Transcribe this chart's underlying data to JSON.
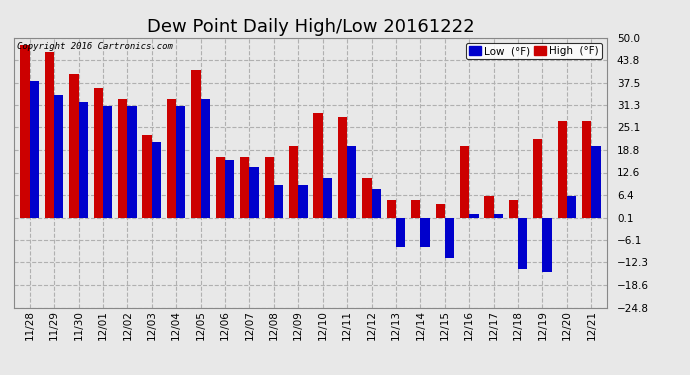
{
  "title": "Dew Point Daily High/Low 20161222",
  "copyright": "Copyright 2016 Cartronics.com",
  "dates": [
    "11/28",
    "11/29",
    "11/30",
    "12/01",
    "12/02",
    "12/03",
    "12/04",
    "12/05",
    "12/06",
    "12/07",
    "12/08",
    "12/09",
    "12/10",
    "12/11",
    "12/12",
    "12/13",
    "12/14",
    "12/15",
    "12/16",
    "12/17",
    "12/18",
    "12/19",
    "12/20",
    "12/21"
  ],
  "high": [
    48,
    46,
    40,
    36,
    33,
    23,
    33,
    41,
    17,
    17,
    17,
    20,
    29,
    28,
    11,
    5,
    5,
    4,
    20,
    6,
    5,
    22,
    27,
    27
  ],
  "low": [
    38,
    34,
    32,
    31,
    31,
    21,
    31,
    33,
    16,
    14,
    9,
    9,
    11,
    20,
    8,
    -8,
    -8,
    -11,
    1,
    1,
    -14,
    -15,
    6,
    20
  ],
  "bar_width": 0.38,
  "low_color": "#0000cc",
  "high_color": "#cc0000",
  "bg_color": "#e8e8e8",
  "grid_color": "#b0b0b0",
  "ylim": [
    -24.8,
    50.0
  ],
  "yticks": [
    50.0,
    43.8,
    37.5,
    31.3,
    25.1,
    18.8,
    12.6,
    6.4,
    0.1,
    -6.1,
    -12.3,
    -18.6,
    -24.8
  ],
  "title_fontsize": 13,
  "tick_fontsize": 7.5,
  "label_color": "#000000",
  "figsize": [
    6.9,
    3.75
  ],
  "dpi": 100
}
